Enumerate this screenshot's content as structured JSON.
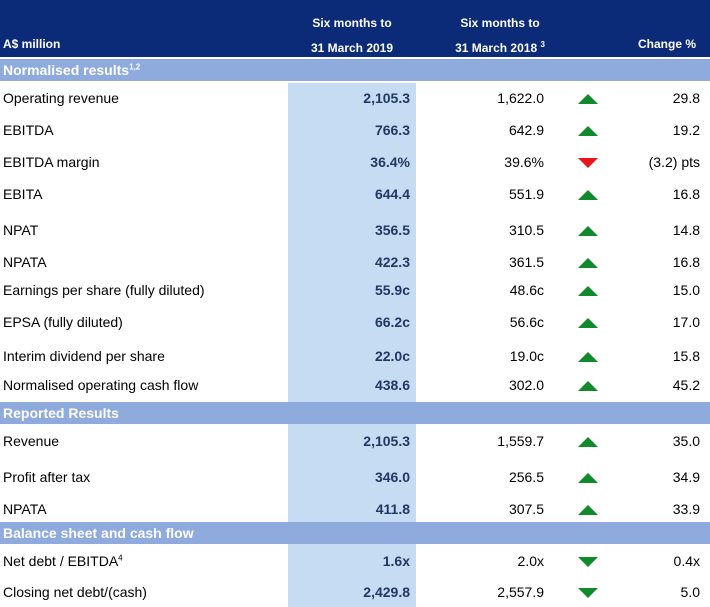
{
  "header": {
    "label": "A$ million",
    "cur_line1": "Six months to",
    "cur_line2": "31 March 2019",
    "prior_line1": "Six months to",
    "prior_line2": "31 March 2018",
    "prior_sup": "3",
    "change": "Change %"
  },
  "sections": [
    {
      "title": "Normalised results",
      "title_sup": "1,2",
      "rows": [
        {
          "label": "Operating revenue",
          "current": "2,105.3",
          "prior": "1,622.0",
          "direction": "up",
          "change": "29.8"
        },
        {
          "label": "EBITDA",
          "current": "766.3",
          "prior": "642.9",
          "direction": "up",
          "change": "19.2"
        },
        {
          "label": "EBITDA margin",
          "current": "36.4%",
          "prior": "39.6%",
          "direction": "down",
          "change": "(3.2) pts"
        },
        {
          "label": "EBITA",
          "current": "644.4",
          "prior": "551.9",
          "direction": "up",
          "change": "16.8"
        },
        {
          "label": "NPAT",
          "current": "356.5",
          "prior": "310.5",
          "direction": "up",
          "change": "14.8"
        },
        {
          "label": "NPATA",
          "current": "422.3",
          "prior": "361.5",
          "direction": "up",
          "change": "16.8"
        },
        {
          "label": "Earnings per share (fully diluted)",
          "current": "55.9c",
          "prior": "48.6c",
          "direction": "up",
          "change": "15.0"
        },
        {
          "label": "EPSA (fully diluted)",
          "current": "66.2c",
          "prior": "56.6c",
          "direction": "up",
          "change": "17.0"
        },
        {
          "label": "Interim dividend per share",
          "current": "22.0c",
          "prior": "19.0c",
          "direction": "up",
          "change": "15.8"
        },
        {
          "label": "Normalised operating cash flow",
          "current": "438.6",
          "prior": "302.0",
          "direction": "up",
          "change": "45.2"
        }
      ]
    },
    {
      "title": "Reported Results",
      "title_sup": "",
      "rows": [
        {
          "label": "Revenue",
          "current": "2,105.3",
          "prior": "1,559.7",
          "direction": "up",
          "change": "35.0"
        },
        {
          "label": "Profit after tax",
          "current": "346.0",
          "prior": "256.5",
          "direction": "up",
          "change": "34.9"
        },
        {
          "label": "NPATA",
          "current": "411.8",
          "prior": "307.5",
          "direction": "up",
          "change": "33.9"
        }
      ]
    },
    {
      "title": "Balance sheet and cash flow",
      "title_sup": "",
      "rows": [
        {
          "label": "Net debt / EBITDA",
          "label_sup": "4",
          "current": "1.6x",
          "prior": "2.0x",
          "direction": "down-green",
          "change": "0.4x"
        },
        {
          "label": "Closing net debt/(cash)",
          "current": "2,429.8",
          "prior": "2,557.9",
          "direction": "down-green",
          "change": "5.0"
        }
      ]
    }
  ],
  "colors": {
    "header_bg": "#0b2a78",
    "section_bg": "#8faadc",
    "highlight_col": "#c6dcf2",
    "arrow_up": "#118a2b",
    "arrow_down_red": "#e8161b",
    "arrow_down_green": "#118a2b"
  }
}
